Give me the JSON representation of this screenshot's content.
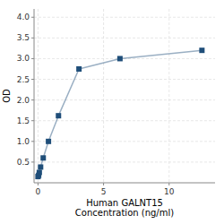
{
  "chart_data": {
    "type": "line",
    "xlabel": "Human GALNT15\nConcentration (ng/ml)",
    "ylabel": "OD",
    "x": [
      0,
      0.05,
      0.1,
      0.2,
      0.4,
      0.8,
      1.5625,
      3.125,
      6.25,
      12.5
    ],
    "series": [
      {
        "values": [
          0.15,
          0.18,
          0.25,
          0.38,
          0.6,
          1.0,
          1.62,
          2.75,
          3.0,
          3.2
        ],
        "color": "#1f4e79",
        "marker": "square"
      }
    ],
    "xlim": [
      -0.3,
      13.5
    ],
    "ylim": [
      0,
      4.2
    ],
    "xticks": [
      0,
      5,
      10
    ],
    "yticks": [
      0.5,
      {
        "value": 1.0,
        "label": "1.0"
      },
      1.5,
      {
        "value": 2.0,
        "label": "2.0"
      },
      2.5,
      {
        "value": 3.0,
        "label": "3.0"
      },
      3.5,
      {
        "value": 4.0,
        "label": "4.0"
      }
    ],
    "grid": true
  }
}
